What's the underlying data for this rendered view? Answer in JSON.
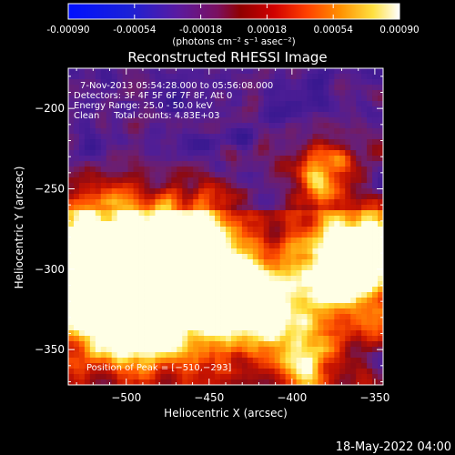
{
  "chart_data": {
    "type": "heatmap",
    "title": "Reconstructed RHESSI Image",
    "xlabel": "Heliocentric X (arcsec)",
    "ylabel": "Heliocentric Y (arcsec)",
    "xlim": [
      -535,
      -345
    ],
    "ylim": [
      -372,
      -175
    ],
    "x_ticks": [
      -500,
      -450,
      -400,
      -350
    ],
    "y_ticks": [
      -200,
      -250,
      -300,
      -350
    ],
    "x_tick_labels": [
      "−500",
      "−450",
      "−400",
      "−350"
    ],
    "y_tick_labels": [
      "−200",
      "−250",
      "−300",
      "−350"
    ],
    "colorbar": {
      "range": [
        -0.0009,
        0.0009
      ],
      "ticks": [
        -0.0009,
        -0.00054,
        -0.00018,
        0.00018,
        0.00054,
        0.0009
      ],
      "tick_labels": [
        "-0.00090",
        "-0.00054",
        "-0.00018",
        "0.00018",
        "0.00054",
        "0.00090"
      ],
      "label": "(photons cm⁻² s⁻¹ asec⁻²)"
    },
    "annotations": [
      "7-Nov-2013 05:54:28.000 to 05:56:08.000",
      "Detectors: 3F 4F 5F 6F 7F 8F, Att 0",
      "Energy Range: 25.0 - 50.0 keV",
      "Clean     Total counts: 4.83E+03"
    ],
    "peak_label": "Position of Peak = [−510,−293]",
    "peak_position": [
      -510,
      -293
    ],
    "grid": false
  },
  "footer": {
    "timestamp": "18-May-2022 04:00"
  },
  "colors": {
    "background": "#000000",
    "text": "#ffffff"
  }
}
